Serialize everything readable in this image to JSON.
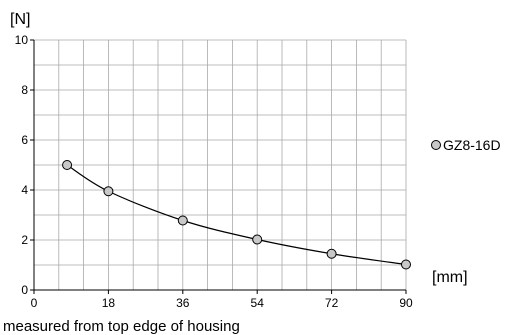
{
  "chart_data": {
    "type": "line",
    "title": "",
    "ylabel": "[N]",
    "xlabel": "[mm]",
    "note": "measured from top edge of housing",
    "xlim": [
      0,
      90
    ],
    "ylim": [
      0,
      10
    ],
    "x_ticks": [
      "0",
      "18",
      "36",
      "54",
      "72",
      "90"
    ],
    "y_ticks": [
      "0",
      "2",
      "4",
      "6",
      "8",
      "10"
    ],
    "grid": true,
    "legend_position": "right",
    "series": [
      {
        "name": "GZ8-16D",
        "x": [
          8,
          18,
          36,
          54,
          72,
          90
        ],
        "y": [
          5.0,
          3.95,
          2.78,
          2.02,
          1.45,
          1.02
        ],
        "marker_color": "#c8c8c8",
        "line_color": "#000000"
      }
    ]
  }
}
